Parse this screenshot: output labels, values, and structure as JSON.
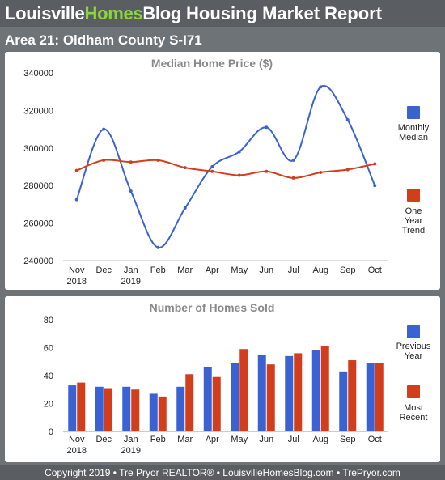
{
  "header": {
    "brand_part1": "Louisville",
    "brand_part2": "Homes",
    "brand_part3": "Blog",
    "report_title": "Housing Market Report"
  },
  "area_title": "Area 21: Oldham County S-I71",
  "footer": "Copyright 2019 • Tre Pryor REALTOR® • LouisvilleHomesBlog.com • TrePryor.com",
  "colors": {
    "blue": "#3a62d2",
    "red": "#d23e1c",
    "header": "#5a5e63",
    "frame": "#6e7378",
    "brand_green": "#8cd63b"
  },
  "chart_data": [
    {
      "type": "line",
      "title": "Median Home Price ($)",
      "categories": [
        "Nov",
        "Dec",
        "Jan",
        "Feb",
        "Mar",
        "Apr",
        "May",
        "Jun",
        "Jul",
        "Aug",
        "Sep",
        "Oct"
      ],
      "category_years": [
        "2018",
        "",
        "2019",
        "",
        "",
        "",
        "",
        "",
        "",
        "",
        "",
        ""
      ],
      "ylim": [
        240000,
        340000
      ],
      "yticks": [
        "240000",
        "260000",
        "280000",
        "300000",
        "320000",
        "340000"
      ],
      "grid": false,
      "legend_position": "right",
      "series": [
        {
          "name": "Monthly Median",
          "legend_lines": [
            "Monthly",
            "Median"
          ],
          "color": "#3a62d2",
          "values": [
            272500,
            310000,
            277000,
            247000,
            268000,
            290000,
            298000,
            311000,
            293500,
            332500,
            315000,
            280000
          ]
        },
        {
          "name": "One Year Trend",
          "legend_lines": [
            "One",
            "Year",
            "Trend"
          ],
          "color": "#d23e1c",
          "values": [
            288000,
            293500,
            292500,
            293500,
            289500,
            287500,
            285500,
            287500,
            284000,
            287000,
            288500,
            291500
          ]
        }
      ]
    },
    {
      "type": "bar",
      "title": "Number of Homes Sold",
      "categories": [
        "Nov",
        "Dec",
        "Jan",
        "Feb",
        "Mar",
        "Apr",
        "May",
        "Jun",
        "Jul",
        "Aug",
        "Sep",
        "Oct"
      ],
      "category_years": [
        "2018",
        "",
        "2019",
        "",
        "",
        "",
        "",
        "",
        "",
        "",
        "",
        ""
      ],
      "ylim": [
        0,
        80
      ],
      "yticks": [
        "0",
        "20",
        "40",
        "60",
        "80"
      ],
      "grid": false,
      "legend_position": "right",
      "series": [
        {
          "name": "Previous Year",
          "legend_lines": [
            "Previous",
            "Year"
          ],
          "color": "#3a62d2",
          "values": [
            33,
            32,
            32,
            27,
            32,
            46,
            49,
            55,
            54,
            58,
            43,
            49
          ]
        },
        {
          "name": "Most Recent",
          "legend_lines": [
            "Most",
            "Recent"
          ],
          "color": "#d23e1c",
          "values": [
            35,
            31,
            30,
            25,
            41,
            39,
            59,
            48,
            56,
            61,
            51,
            49
          ]
        }
      ]
    }
  ]
}
